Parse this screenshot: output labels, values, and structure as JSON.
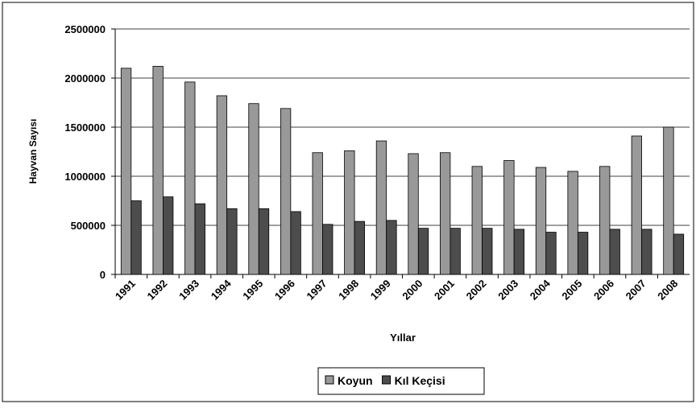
{
  "chart_data": {
    "type": "bar",
    "x_label": "Yıllar",
    "y_label": "Hayvan Sayısı",
    "categories": [
      "1991",
      "1992",
      "1993",
      "1994",
      "1995",
      "1996",
      "1997",
      "1998",
      "1999",
      "2000",
      "2001",
      "2002",
      "2003",
      "2004",
      "2005",
      "2006",
      "2007",
      "2008"
    ],
    "series": [
      {
        "name": "Koyun",
        "color": "#999999",
        "values": [
          2100000,
          2120000,
          1960000,
          1820000,
          1740000,
          1690000,
          1240000,
          1260000,
          1360000,
          1230000,
          1240000,
          1100000,
          1160000,
          1090000,
          1050000,
          1100000,
          1410000,
          1500000
        ]
      },
      {
        "name": "Kıl Keçisi",
        "color": "#4d4d4d",
        "values": [
          750000,
          790000,
          720000,
          670000,
          670000,
          640000,
          510000,
          540000,
          550000,
          470000,
          470000,
          470000,
          460000,
          430000,
          430000,
          460000,
          460000,
          410000
        ]
      }
    ],
    "ylim": [
      0,
      2500000
    ],
    "yticks": [
      0,
      500000,
      1000000,
      1500000,
      2000000,
      2500000
    ],
    "grid": true,
    "legend": "bottom"
  }
}
